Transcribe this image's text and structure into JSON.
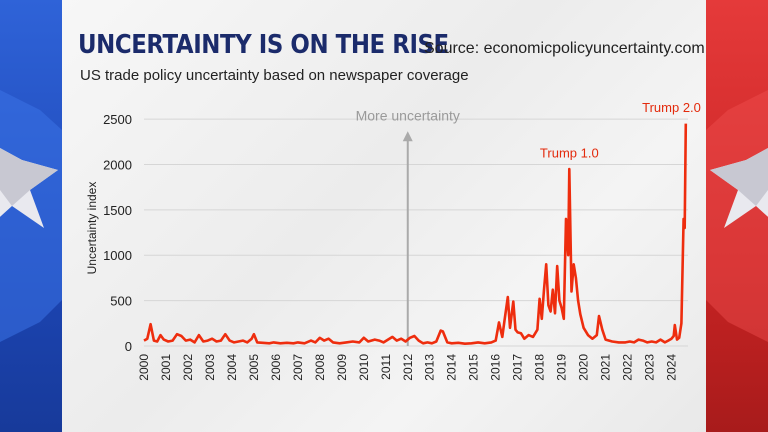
{
  "header": {
    "title": "UNCERTAINTY IS ON THE RISE",
    "source": "Source: economicpolicyuncertainty.com",
    "subtitle": "US trade policy uncertainty based on newspaper coverage"
  },
  "colors": {
    "line": "#ee2d0e",
    "annotation_text": "#e32a0c",
    "arrow": "#aaaaaa",
    "left_band": "#2454c8",
    "right_band": "#d02a2a",
    "title": "#1b2b6b"
  },
  "chart_data": {
    "type": "line",
    "xlabel": "",
    "ylabel": "Uncertainty index",
    "xlim": [
      2000,
      2024.75
    ],
    "ylim": [
      0,
      2600
    ],
    "yticks": [
      0,
      500,
      1000,
      1500,
      2000,
      2500
    ],
    "xticks": [
      "2000",
      "2001",
      "2002",
      "2003",
      "2004",
      "2005",
      "2006",
      "2007",
      "2008",
      "2009",
      "2010",
      "2011",
      "2012",
      "2013",
      "2014",
      "2015",
      "2016",
      "2017",
      "2018",
      "2019",
      "2020",
      "2021",
      "2022",
      "2023",
      "2024"
    ],
    "grid": "horizontal",
    "series": [
      {
        "points": [
          [
            2000.0,
            60
          ],
          [
            2000.15,
            80
          ],
          [
            2000.3,
            240
          ],
          [
            2000.45,
            60
          ],
          [
            2000.6,
            50
          ],
          [
            2000.75,
            120
          ],
          [
            2000.9,
            70
          ],
          [
            2001.1,
            50
          ],
          [
            2001.3,
            60
          ],
          [
            2001.5,
            130
          ],
          [
            2001.7,
            110
          ],
          [
            2001.9,
            60
          ],
          [
            2002.1,
            70
          ],
          [
            2002.3,
            40
          ],
          [
            2002.5,
            120
          ],
          [
            2002.7,
            50
          ],
          [
            2002.9,
            60
          ],
          [
            2003.1,
            80
          ],
          [
            2003.3,
            50
          ],
          [
            2003.5,
            60
          ],
          [
            2003.7,
            130
          ],
          [
            2003.9,
            60
          ],
          [
            2004.1,
            40
          ],
          [
            2004.3,
            50
          ],
          [
            2004.5,
            60
          ],
          [
            2004.7,
            40
          ],
          [
            2004.9,
            80
          ],
          [
            2005.0,
            130
          ],
          [
            2005.15,
            40
          ],
          [
            2005.4,
            35
          ],
          [
            2005.7,
            30
          ],
          [
            2005.9,
            40
          ],
          [
            2006.2,
            30
          ],
          [
            2006.5,
            35
          ],
          [
            2006.8,
            30
          ],
          [
            2007.0,
            40
          ],
          [
            2007.3,
            30
          ],
          [
            2007.6,
            60
          ],
          [
            2007.8,
            40
          ],
          [
            2008.0,
            90
          ],
          [
            2008.2,
            60
          ],
          [
            2008.4,
            80
          ],
          [
            2008.6,
            40
          ],
          [
            2008.9,
            30
          ],
          [
            2009.2,
            40
          ],
          [
            2009.5,
            50
          ],
          [
            2009.8,
            40
          ],
          [
            2010.0,
            90
          ],
          [
            2010.2,
            50
          ],
          [
            2010.5,
            70
          ],
          [
            2010.7,
            60
          ],
          [
            2010.9,
            40
          ],
          [
            2011.1,
            70
          ],
          [
            2011.3,
            100
          ],
          [
            2011.5,
            60
          ],
          [
            2011.7,
            80
          ],
          [
            2011.9,
            50
          ],
          [
            2012.1,
            90
          ],
          [
            2012.3,
            110
          ],
          [
            2012.5,
            60
          ],
          [
            2012.7,
            30
          ],
          [
            2012.9,
            40
          ],
          [
            2013.1,
            30
          ],
          [
            2013.3,
            50
          ],
          [
            2013.5,
            170
          ],
          [
            2013.6,
            160
          ],
          [
            2013.8,
            40
          ],
          [
            2014.0,
            30
          ],
          [
            2014.3,
            35
          ],
          [
            2014.6,
            25
          ],
          [
            2014.9,
            30
          ],
          [
            2015.2,
            40
          ],
          [
            2015.5,
            30
          ],
          [
            2015.8,
            40
          ],
          [
            2016.0,
            60
          ],
          [
            2016.15,
            260
          ],
          [
            2016.3,
            100
          ],
          [
            2016.4,
            280
          ],
          [
            2016.55,
            540
          ],
          [
            2016.65,
            200
          ],
          [
            2016.8,
            490
          ],
          [
            2016.9,
            180
          ],
          [
            2017.0,
            150
          ],
          [
            2017.15,
            140
          ],
          [
            2017.3,
            80
          ],
          [
            2017.5,
            120
          ],
          [
            2017.7,
            100
          ],
          [
            2017.9,
            180
          ],
          [
            2018.0,
            520
          ],
          [
            2018.1,
            300
          ],
          [
            2018.2,
            620
          ],
          [
            2018.3,
            900
          ],
          [
            2018.4,
            450
          ],
          [
            2018.5,
            380
          ],
          [
            2018.6,
            620
          ],
          [
            2018.7,
            360
          ],
          [
            2018.8,
            880
          ],
          [
            2018.9,
            500
          ],
          [
            2019.0,
            420
          ],
          [
            2019.1,
            300
          ],
          [
            2019.2,
            1400
          ],
          [
            2019.3,
            1000
          ],
          [
            2019.35,
            1950
          ],
          [
            2019.45,
            600
          ],
          [
            2019.55,
            900
          ],
          [
            2019.65,
            750
          ],
          [
            2019.75,
            500
          ],
          [
            2019.85,
            350
          ],
          [
            2020.0,
            200
          ],
          [
            2020.2,
            120
          ],
          [
            2020.4,
            80
          ],
          [
            2020.6,
            120
          ],
          [
            2020.7,
            330
          ],
          [
            2020.85,
            180
          ],
          [
            2021.0,
            70
          ],
          [
            2021.3,
            50
          ],
          [
            2021.6,
            40
          ],
          [
            2021.9,
            40
          ],
          [
            2022.1,
            50
          ],
          [
            2022.3,
            40
          ],
          [
            2022.5,
            70
          ],
          [
            2022.7,
            60
          ],
          [
            2022.9,
            40
          ],
          [
            2023.1,
            50
          ],
          [
            2023.3,
            40
          ],
          [
            2023.5,
            70
          ],
          [
            2023.7,
            40
          ],
          [
            2023.85,
            60
          ],
          [
            2024.0,
            80
          ],
          [
            2024.1,
            110
          ],
          [
            2024.15,
            230
          ],
          [
            2024.25,
            70
          ],
          [
            2024.35,
            90
          ],
          [
            2024.45,
            250
          ],
          [
            2024.55,
            1400
          ],
          [
            2024.6,
            1300
          ],
          [
            2024.65,
            2450
          ]
        ]
      }
    ],
    "annotations": [
      {
        "label": "More uncertainty",
        "x": 2012,
        "y": 2540,
        "kind": "arrow"
      },
      {
        "label": "Trump 1.0",
        "x": 2019.35,
        "y": 2100,
        "kind": "text"
      },
      {
        "label": "Trump 2.0",
        "x": 2024.0,
        "y": 2600,
        "kind": "text"
      }
    ]
  }
}
